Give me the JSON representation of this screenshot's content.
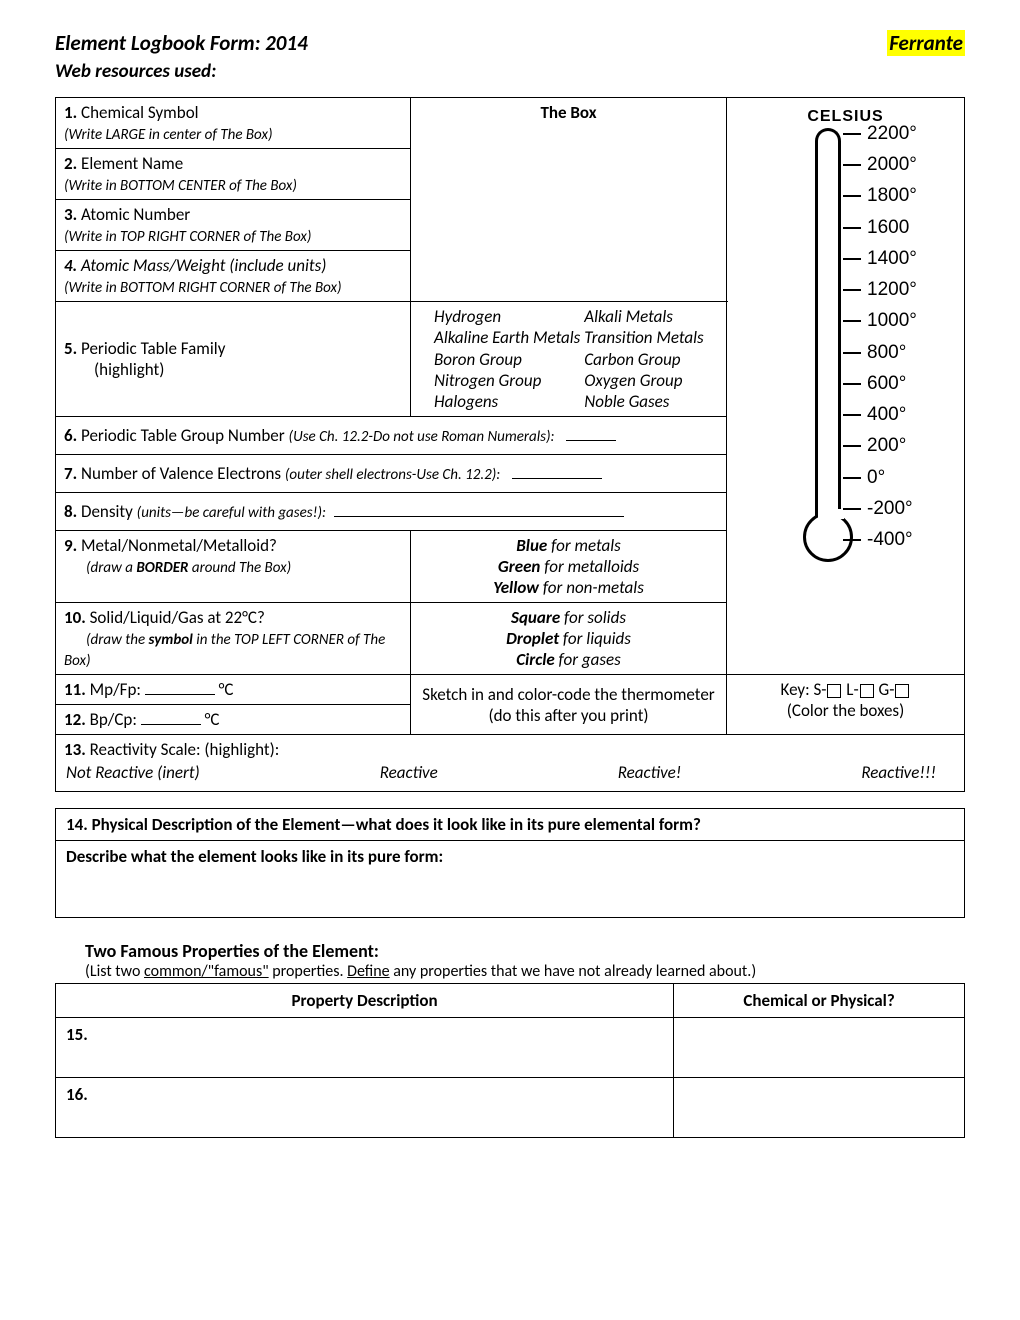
{
  "header": {
    "title": "Element Logbook Form: 2014",
    "teacher": "Ferrante",
    "subtitle": "Web resources used:"
  },
  "rows": {
    "r1": {
      "num": "1.",
      "label": "Chemical Symbol",
      "hint": "(Write LARGE in center of The Box)"
    },
    "r2": {
      "num": "2.",
      "label": "Element Name",
      "hint": "(Write in BOTTOM CENTER of The Box)"
    },
    "r3": {
      "num": "3.",
      "label": "Atomic Number",
      "hint": "(Write in TOP RIGHT CORNER of The Box)"
    },
    "r4": {
      "num": "4.",
      "label": "Atomic Mass/Weight (include units)",
      "hint": "(Write in BOTTOM RIGHT CORNER of The Box)"
    },
    "box_title": "The Box",
    "r5": {
      "num": "5.",
      "label": "Periodic Table Family",
      "sub": "(highlight)"
    },
    "families_left": [
      "Hydrogen",
      "Alkaline Earth Metals",
      "Boron Group",
      "Nitrogen Group",
      "Halogens"
    ],
    "families_right": [
      "Alkali Metals",
      "Transition Metals",
      "Carbon Group",
      "Oxygen Group",
      "Noble Gases"
    ],
    "r6": "Periodic Table Group Number",
    "r6_hint": "(Use Ch. 12.2-Do not use Roman Numerals):",
    "r7": "Number of Valence Electrons",
    "r7_hint": "(outer shell electrons-Use Ch. 12.2):",
    "r8": "Density",
    "r8_hint": "(units—be careful with gases!):",
    "r9": {
      "num": "9.",
      "label": "Metal/Nonmetal/Metalloid?",
      "hint": "(draw a",
      "hint_b": "BORDER",
      "hint2": "around The Box)"
    },
    "r9_opts": {
      "a": "Blue",
      "a2": " for metals",
      "b": "Green",
      "b2": " for metalloids",
      "c": "Yellow",
      "c2": " for non-metals"
    },
    "r10": {
      "num": "10.",
      "label": "Solid/Liquid/Gas at 22°C?",
      "hint": "(draw the",
      "hint_b": "symbol",
      "hint2": "in the TOP LEFT CORNER of The Box)"
    },
    "r10_opts": {
      "a": "Square",
      "a2": " for solids",
      "b": "Droplet",
      "b2": " for liquids",
      "c": "Circle",
      "c2": " for gases"
    },
    "r11": "Mp/Fp:",
    "r12": "Bp/Cp:",
    "unit_c": "°C",
    "thermo_instr": "Sketch in and color-code the thermometer (do this after you print)",
    "key": {
      "pre": "Key:  S-",
      "l": "  L-",
      "g": "  G-",
      "sub": "(Color the boxes)"
    },
    "r13": "Reactivity Scale: (highlight):",
    "react_opts": [
      "Not Reactive (inert)",
      "Reactive",
      "Reactive!",
      "Reactive!!!"
    ]
  },
  "thermometer": {
    "label": "CELSIUS",
    "ticks": [
      "2200°",
      "2000°",
      "1800°",
      "1600",
      "1400°",
      "1200°",
      "1000°",
      "800°",
      "600°",
      "400°",
      "200°",
      "0°",
      "-200°",
      "-400°"
    ]
  },
  "section14": {
    "header": "14.  Physical Description of the Element—what does it look like in its pure elemental form?",
    "prompt": "Describe what the element looks like in its pure form:"
  },
  "props": {
    "title": "Two Famous Properties of the Element:",
    "sub_a": "(List two ",
    "sub_u1": "common/\"famous\"",
    "sub_b": " properties.  ",
    "sub_u2": "Define",
    "sub_c": " any properties that we have not already learned about.)",
    "col1": "Property Description",
    "col2": "Chemical or Physical?",
    "n15": "15.",
    "n16": "16."
  }
}
